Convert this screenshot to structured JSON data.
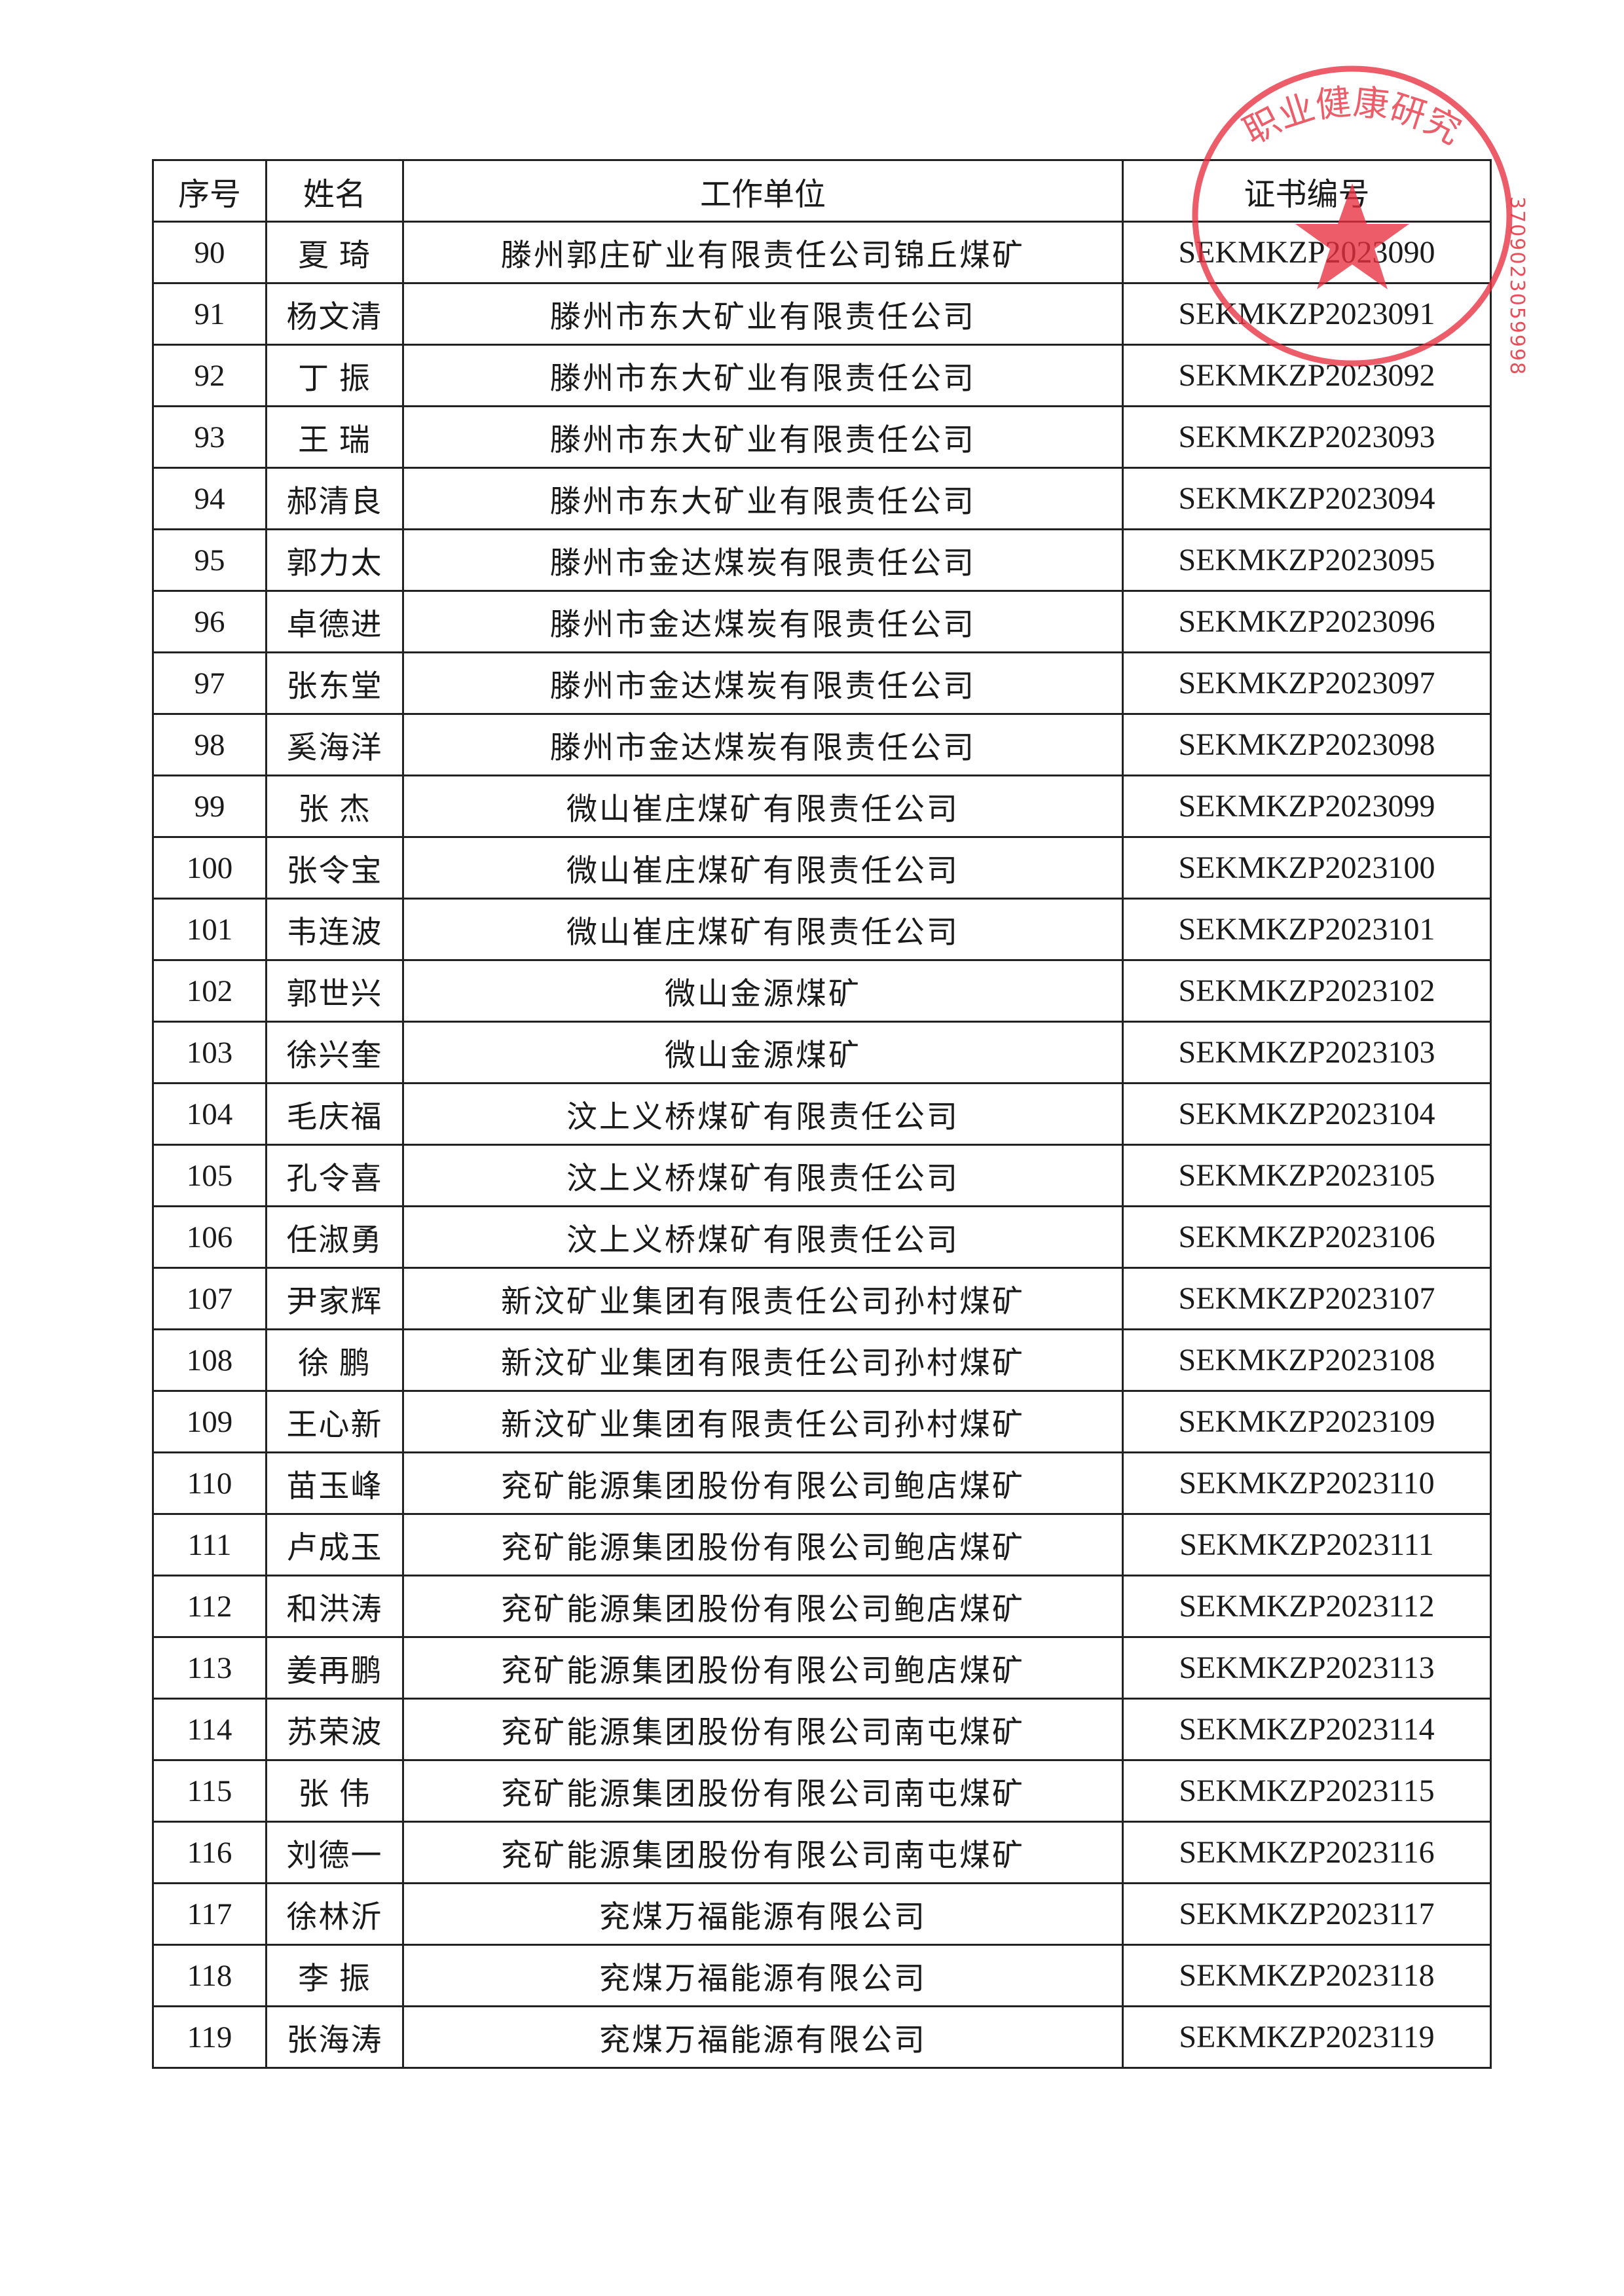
{
  "table": {
    "headers": [
      "序号",
      "姓名",
      "工作单位",
      "证书编号"
    ],
    "rows": [
      [
        "90",
        "夏 琦",
        "滕州郭庄矿业有限责任公司锦丘煤矿",
        "SEKMKZP2023090"
      ],
      [
        "91",
        "杨文清",
        "滕州市东大矿业有限责任公司",
        "SEKMKZP2023091"
      ],
      [
        "92",
        "丁 振",
        "滕州市东大矿业有限责任公司",
        "SEKMKZP2023092"
      ],
      [
        "93",
        "王 瑞",
        "滕州市东大矿业有限责任公司",
        "SEKMKZP2023093"
      ],
      [
        "94",
        "郝清良",
        "滕州市东大矿业有限责任公司",
        "SEKMKZP2023094"
      ],
      [
        "95",
        "郭力太",
        "滕州市金达煤炭有限责任公司",
        "SEKMKZP2023095"
      ],
      [
        "96",
        "卓德进",
        "滕州市金达煤炭有限责任公司",
        "SEKMKZP2023096"
      ],
      [
        "97",
        "张东堂",
        "滕州市金达煤炭有限责任公司",
        "SEKMKZP2023097"
      ],
      [
        "98",
        "奚海洋",
        "滕州市金达煤炭有限责任公司",
        "SEKMKZP2023098"
      ],
      [
        "99",
        "张 杰",
        "微山崔庄煤矿有限责任公司",
        "SEKMKZP2023099"
      ],
      [
        "100",
        "张令宝",
        "微山崔庄煤矿有限责任公司",
        "SEKMKZP2023100"
      ],
      [
        "101",
        "韦连波",
        "微山崔庄煤矿有限责任公司",
        "SEKMKZP2023101"
      ],
      [
        "102",
        "郭世兴",
        "微山金源煤矿",
        "SEKMKZP2023102"
      ],
      [
        "103",
        "徐兴奎",
        "微山金源煤矿",
        "SEKMKZP2023103"
      ],
      [
        "104",
        "毛庆福",
        "汶上义桥煤矿有限责任公司",
        "SEKMKZP2023104"
      ],
      [
        "105",
        "孔令喜",
        "汶上义桥煤矿有限责任公司",
        "SEKMKZP2023105"
      ],
      [
        "106",
        "任淑勇",
        "汶上义桥煤矿有限责任公司",
        "SEKMKZP2023106"
      ],
      [
        "107",
        "尹家辉",
        "新汶矿业集团有限责任公司孙村煤矿",
        "SEKMKZP2023107"
      ],
      [
        "108",
        "徐 鹏",
        "新汶矿业集团有限责任公司孙村煤矿",
        "SEKMKZP2023108"
      ],
      [
        "109",
        "王心新",
        "新汶矿业集团有限责任公司孙村煤矿",
        "SEKMKZP2023109"
      ],
      [
        "110",
        "苗玉峰",
        "兖矿能源集团股份有限公司鲍店煤矿",
        "SEKMKZP2023110"
      ],
      [
        "111",
        "卢成玉",
        "兖矿能源集团股份有限公司鲍店煤矿",
        "SEKMKZP2023111"
      ],
      [
        "112",
        "和洪涛",
        "兖矿能源集团股份有限公司鲍店煤矿",
        "SEKMKZP2023112"
      ],
      [
        "113",
        "姜再鹏",
        "兖矿能源集团股份有限公司鲍店煤矿",
        "SEKMKZP2023113"
      ],
      [
        "114",
        "苏荣波",
        "兖矿能源集团股份有限公司南屯煤矿",
        "SEKMKZP2023114"
      ],
      [
        "115",
        "张 伟",
        "兖矿能源集团股份有限公司南屯煤矿",
        "SEKMKZP2023115"
      ],
      [
        "116",
        "刘德一",
        "兖矿能源集团股份有限公司南屯煤矿",
        "SEKMKZP2023116"
      ],
      [
        "117",
        "徐林沂",
        "兖煤万福能源有限公司",
        "SEKMKZP2023117"
      ],
      [
        "118",
        "李 振",
        "兖煤万福能源有限公司",
        "SEKMKZP2023118"
      ],
      [
        "119",
        "张海涛",
        "兖煤万福能源有限公司",
        "SEKMKZP2023119"
      ]
    ]
  },
  "stamp": {
    "text": "职业健康研究",
    "number": "3709023059998",
    "color": "#e8303f"
  }
}
